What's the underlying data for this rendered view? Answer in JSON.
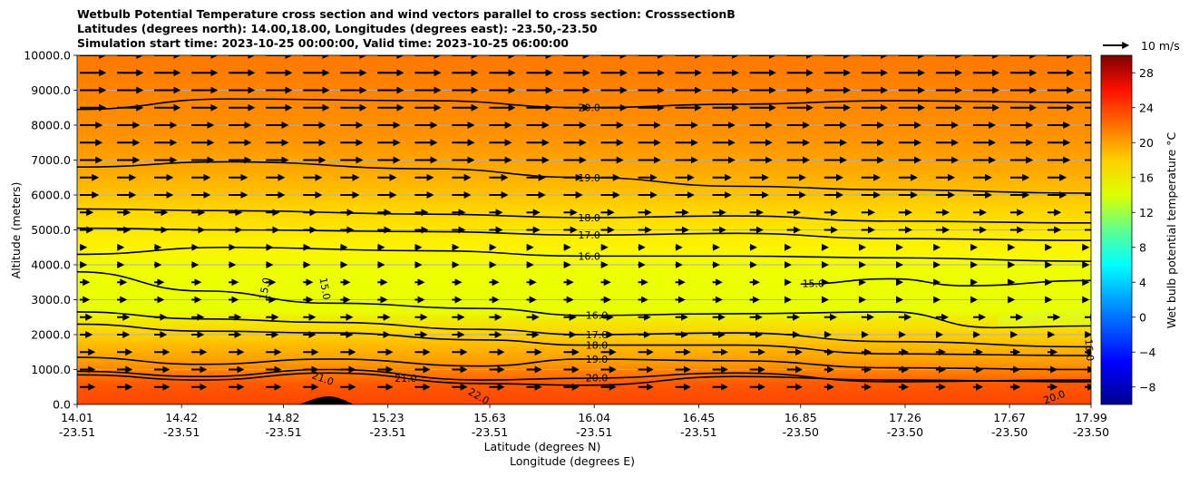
{
  "chart_data": {
    "type": "heatmap",
    "title_lines": [
      "Wetbulb Potential Temperature cross section and wind vectors parallel to cross section: CrosssectionB",
      "Latitudes (degrees north): 14.00,18.00, Longitudes (degrees east): -23.50,-23.50",
      "Simulation start time: 2023-10-25 00:00:00, Valid time: 2023-10-25 06:00:00"
    ],
    "xlabel_lat": "Latitude (degrees N)",
    "xlabel_lon": "Longitude (degrees E)",
    "ylabel": "Altitude (meters)",
    "colorbar_label": "Wet bulb potential temperature $^\\circ$C",
    "colorbar_label_display": "Wet bulb potential temperature °C",
    "colorbar_range": [
      -10,
      30
    ],
    "colorbar_ticks": [
      "28",
      "24",
      "20",
      "16",
      "12",
      "8",
      "4",
      "0",
      "−4",
      "−8"
    ],
    "colorbar_tick_values": [
      28,
      24,
      20,
      16,
      12,
      8,
      4,
      0,
      -4,
      -8
    ],
    "quiver_key_label": "10 m/s",
    "ylim": [
      0,
      10000
    ],
    "y_ticks": [
      "0.0",
      "1000.0",
      "2000.0",
      "3000.0",
      "4000.0",
      "5000.0",
      "6000.0",
      "7000.0",
      "8000.0",
      "9000.0",
      "10000.0"
    ],
    "y_tick_values": [
      0,
      1000,
      2000,
      3000,
      4000,
      5000,
      6000,
      7000,
      8000,
      9000,
      10000
    ],
    "x_range": [
      14.01,
      17.99
    ],
    "x_ticks_lat": [
      "14.01",
      "14.42",
      "14.82",
      "15.23",
      "15.63",
      "16.04",
      "16.45",
      "16.85",
      "17.26",
      "17.67",
      "17.99"
    ],
    "x_ticks_lon": [
      "-23.51",
      "-23.51",
      "-23.51",
      "-23.51",
      "-23.51",
      "-23.51",
      "-23.51",
      "-23.50",
      "-23.50",
      "-23.50",
      "-23.50"
    ],
    "x_tick_values": [
      14.01,
      14.42,
      14.82,
      15.23,
      15.63,
      16.04,
      16.45,
      16.85,
      17.26,
      17.67,
      17.99
    ],
    "grid": "horizontal",
    "contour_levels": [
      {
        "label": "20.0",
        "value": 20,
        "x": [
          14.01,
          14.6,
          15.4,
          16.0,
          16.6,
          17.2,
          17.99
        ],
        "y": [
          8450,
          8750,
          8700,
          8500,
          8600,
          8700,
          8650
        ]
      },
      {
        "label": "19.0",
        "value": 19,
        "x": [
          14.01,
          14.6,
          15.4,
          16.0,
          16.6,
          17.2,
          17.99
        ],
        "y": [
          6800,
          6950,
          6750,
          6500,
          6250,
          6150,
          6050
        ]
      },
      {
        "label": "18.0",
        "value": 18,
        "x": [
          14.01,
          14.6,
          15.4,
          16.0,
          16.6,
          17.2,
          17.99
        ],
        "y": [
          5600,
          5550,
          5450,
          5350,
          5400,
          5250,
          5200
        ]
      },
      {
        "label": "17.0",
        "value": 17,
        "x": [
          14.01,
          14.6,
          15.4,
          16.0,
          16.6,
          17.2,
          17.99
        ],
        "y": [
          5050,
          5000,
          4950,
          4850,
          4900,
          4750,
          4700
        ]
      },
      {
        "label": "16.0",
        "value": 16,
        "x": [
          14.01,
          14.6,
          15.4,
          16.0,
          16.6,
          17.2,
          17.99
        ],
        "y": [
          4300,
          4500,
          4400,
          4250,
          4250,
          4200,
          4100
        ]
      },
      {
        "label": "15.0",
        "value": 15,
        "x": [
          16.85,
          17.2,
          17.5,
          17.99
        ],
        "y": [
          3450,
          3600,
          3400,
          3550
        ]
      },
      {
        "label": "16.0",
        "value": 16,
        "x": [
          14.01,
          14.5,
          15.0,
          15.6,
          16.0,
          16.6,
          17.2,
          17.6,
          17.99
        ],
        "y": [
          3800,
          3250,
          2900,
          2750,
          2550,
          2600,
          2650,
          2200,
          2250
        ]
      },
      {
        "label": "17.0",
        "value": 17,
        "x": [
          14.01,
          14.5,
          15.0,
          15.6,
          16.0,
          16.6,
          17.2,
          17.99
        ],
        "y": [
          2650,
          2450,
          2350,
          2150,
          2000,
          2050,
          1800,
          1650
        ]
      },
      {
        "label": "18.0",
        "value": 18,
        "x": [
          14.01,
          14.5,
          15.0,
          15.6,
          16.0,
          16.6,
          17.2,
          17.99
        ],
        "y": [
          2300,
          2100,
          2050,
          1850,
          1700,
          1700,
          1450,
          1400
        ]
      },
      {
        "label": "19.0",
        "value": 19,
        "x": [
          14.01,
          14.5,
          15.0,
          15.6,
          16.0,
          16.6,
          17.2,
          17.99
        ],
        "y": [
          1350,
          1150,
          1300,
          1100,
          1300,
          1250,
          1050,
          1000
        ]
      },
      {
        "label": "20.0",
        "value": 20,
        "x": [
          14.01,
          14.5,
          15.0,
          15.6,
          16.0,
          16.6,
          17.2,
          17.99
        ],
        "y": [
          950,
          800,
          1000,
          700,
          750,
          900,
          650,
          700
        ]
      },
      {
        "label": "21.0",
        "value": 21,
        "x": [
          14.01,
          14.5,
          15.0,
          15.6,
          16.0,
          16.6,
          17.2,
          17.99
        ],
        "y": [
          850,
          700,
          900,
          600,
          550,
          800,
          700,
          650
        ]
      }
    ],
    "extra_contour_labels": [
      "15.0",
      "15.0",
      "21.0",
      "22.0",
      "16.0",
      "20.0"
    ]
  }
}
